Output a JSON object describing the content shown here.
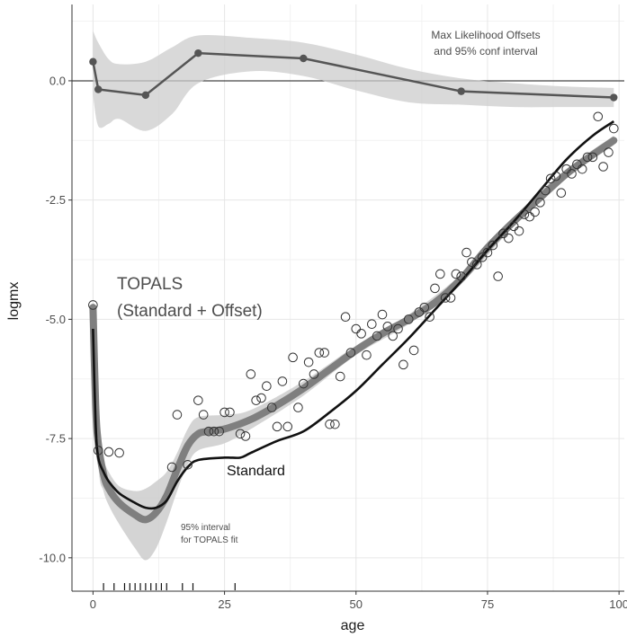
{
  "chart_data": {
    "type": "line",
    "title": "",
    "xlabel": "age",
    "ylabel": "logmx",
    "xlim": [
      -4,
      101
    ],
    "ylim": [
      -10.7,
      1.6
    ],
    "xticks": [
      0,
      25,
      50,
      75,
      100
    ],
    "xtick_labels": [
      "0",
      "25",
      "50",
      "75",
      "100"
    ],
    "yticks": [
      0,
      -2.5,
      -5,
      -7.5,
      -10
    ],
    "ytick_labels": [
      "0.0",
      "-2.5",
      "-5.0",
      "-7.5",
      "-10.0"
    ],
    "grid": true,
    "colors": {
      "grid_major": "#e6e6e6",
      "grid_minor": "#f2f2f2",
      "ribbon": "#cccccc",
      "topals_fit": "#7f7f7f",
      "standard": "#111111",
      "offsets": "#555555",
      "points_stroke": "#333333"
    },
    "annotations": {
      "offsets_line1": "Max Likelihood Offsets",
      "offsets_line2": "and 95% conf interval",
      "topals_line1": "TOPALS",
      "topals_line2": "(Standard + Offset)",
      "standard": "Standard",
      "interval_line1": "95% interval",
      "interval_line2": "for TOPALS fit"
    },
    "offsets": {
      "x": [
        0,
        1,
        10,
        20,
        40,
        70,
        99
      ],
      "y": [
        0.4,
        -0.18,
        -0.3,
        0.58,
        0.47,
        -0.22,
        -0.35
      ]
    },
    "offsets_ci": {
      "x": [
        0,
        1,
        3,
        5,
        10,
        15,
        20,
        30,
        40,
        50,
        60,
        70,
        80,
        90,
        99
      ],
      "upper": [
        1.05,
        0.8,
        0.45,
        0.35,
        0.4,
        0.7,
        0.95,
        0.9,
        0.8,
        0.55,
        0.25,
        0.05,
        -0.05,
        -0.12,
        -0.15
      ],
      "lower": [
        -0.3,
        -0.95,
        -0.9,
        -0.8,
        -1.05,
        -0.7,
        -0.05,
        0.2,
        0.1,
        -0.2,
        -0.45,
        -0.5,
        -0.55,
        -0.55,
        -0.55
      ]
    },
    "standard": {
      "x": [
        0,
        0.5,
        1,
        2,
        3,
        5,
        8,
        10,
        12,
        14,
        16,
        18,
        20,
        25,
        28,
        30,
        35,
        40,
        45,
        50,
        55,
        60,
        65,
        70,
        75,
        80,
        85,
        90,
        95,
        99
      ],
      "y": [
        -5.2,
        -7.2,
        -7.9,
        -8.2,
        -8.4,
        -8.65,
        -8.85,
        -8.95,
        -8.95,
        -8.8,
        -8.4,
        -8.1,
        -7.95,
        -7.9,
        -7.9,
        -7.8,
        -7.55,
        -7.35,
        -6.95,
        -6.5,
        -5.95,
        -5.4,
        -4.8,
        -4.2,
        -3.55,
        -2.95,
        -2.3,
        -1.65,
        -1.15,
        -0.85
      ]
    },
    "topals_fit": {
      "x": [
        0,
        0.5,
        1,
        2,
        3,
        5,
        8,
        10,
        12,
        14,
        16,
        18,
        20,
        22,
        25,
        30,
        35,
        40,
        45,
        50,
        55,
        60,
        65,
        70,
        75,
        80,
        85,
        90,
        95,
        99
      ],
      "y": [
        -4.75,
        -6.8,
        -7.6,
        -8.25,
        -8.55,
        -8.85,
        -9.1,
        -9.2,
        -9.05,
        -8.7,
        -8.15,
        -7.65,
        -7.4,
        -7.35,
        -7.3,
        -7.1,
        -6.8,
        -6.45,
        -6.05,
        -5.65,
        -5.3,
        -5.0,
        -4.65,
        -4.15,
        -3.5,
        -2.95,
        -2.45,
        -1.95,
        -1.55,
        -1.25
      ]
    },
    "topals_ci": {
      "x": [
        0,
        1,
        2,
        3,
        5,
        8,
        10,
        12,
        14,
        16,
        18,
        20,
        25,
        30,
        40,
        50,
        60,
        70,
        80,
        90,
        99
      ],
      "upper": [
        -4.6,
        -7.2,
        -7.9,
        -8.2,
        -8.5,
        -8.6,
        -8.55,
        -8.4,
        -8.2,
        -7.8,
        -7.3,
        -7.05,
        -7.0,
        -6.9,
        -6.3,
        -5.55,
        -4.9,
        -4.05,
        -2.85,
        -1.85,
        -1.15
      ],
      "lower": [
        -4.9,
        -8.0,
        -8.6,
        -8.9,
        -9.3,
        -9.8,
        -10.05,
        -9.8,
        -9.25,
        -8.6,
        -8.05,
        -7.75,
        -7.6,
        -7.3,
        -6.6,
        -5.75,
        -5.1,
        -4.25,
        -3.05,
        -2.05,
        -1.35
      ]
    },
    "observed": {
      "x": [
        0,
        1,
        3,
        5,
        15,
        16,
        18,
        20,
        21,
        22,
        23,
        24,
        25,
        26,
        28,
        29,
        30,
        31,
        32,
        33,
        34,
        35,
        36,
        37,
        38,
        39,
        40,
        41,
        42,
        43,
        44,
        45,
        46,
        47,
        48,
        49,
        50,
        51,
        52,
        53,
        54,
        55,
        56,
        57,
        58,
        59,
        60,
        61,
        62,
        63,
        64,
        65,
        66,
        67,
        68,
        69,
        70,
        71,
        72,
        73,
        74,
        75,
        76,
        77,
        78,
        79,
        80,
        81,
        82,
        83,
        84,
        85,
        86,
        87,
        88,
        89,
        90,
        91,
        92,
        93,
        94,
        95,
        96,
        97,
        98,
        99
      ],
      "y": [
        -4.7,
        -7.75,
        -7.78,
        -7.8,
        -8.1,
        -7.0,
        -8.05,
        -6.7,
        -7.0,
        -7.35,
        -7.35,
        -7.35,
        -6.95,
        -6.95,
        -7.4,
        -7.45,
        -6.15,
        -6.7,
        -6.65,
        -6.4,
        -6.85,
        -7.25,
        -6.3,
        -7.25,
        -5.8,
        -6.85,
        -6.35,
        -5.9,
        -6.15,
        -5.7,
        -5.7,
        -7.2,
        -7.2,
        -6.2,
        -4.95,
        -5.7,
        -5.2,
        -5.3,
        -5.75,
        -5.1,
        -5.35,
        -4.9,
        -5.15,
        -5.35,
        -5.2,
        -5.95,
        -5.0,
        -5.65,
        -4.85,
        -4.75,
        -4.95,
        -4.35,
        -4.05,
        -4.55,
        -4.55,
        -4.05,
        -4.1,
        -3.6,
        -3.8,
        -3.85,
        -3.7,
        -3.6,
        -3.45,
        -4.1,
        -3.2,
        -3.3,
        -3.05,
        -3.15,
        -2.8,
        -2.85,
        -2.75,
        -2.55,
        -2.3,
        -2.05,
        -2.0,
        -2.35,
        -1.85,
        -1.95,
        -1.75,
        -1.85,
        -1.6,
        -1.6,
        -0.75,
        -1.8,
        -1.5,
        -1.0
      ]
    },
    "rug_x": [
      2,
      4,
      6,
      7,
      8,
      9,
      10,
      11,
      12,
      13,
      14,
      17,
      19,
      27
    ]
  }
}
